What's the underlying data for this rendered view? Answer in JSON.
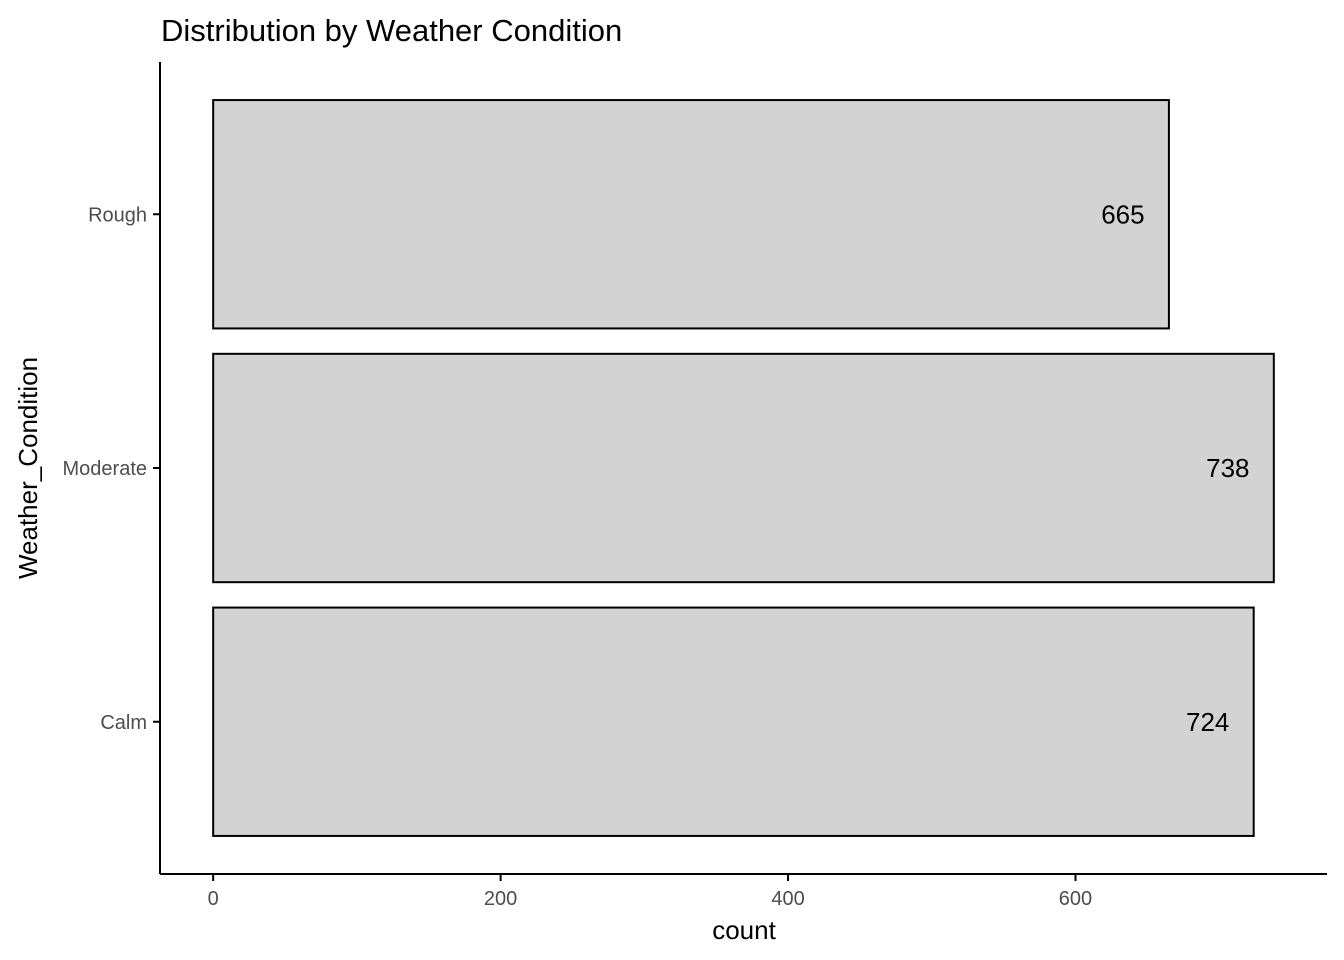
{
  "chart_data": {
    "type": "bar",
    "orientation": "horizontal",
    "title": "Distribution by Weather Condition",
    "xlabel": "count",
    "ylabel": "Weather_Condition",
    "categories": [
      "Calm",
      "Moderate",
      "Rough"
    ],
    "values": [
      724,
      738,
      665
    ],
    "data_labels": [
      "724",
      "738",
      "665"
    ],
    "xlim": [
      -37,
      775
    ],
    "xticks": [
      0,
      200,
      400,
      600
    ],
    "xtick_labels": [
      "0",
      "200",
      "400",
      "600"
    ],
    "grid": false,
    "legend": "none",
    "colors": {
      "bar_fill": "#d3d3d3",
      "bar_stroke": "#000000",
      "axis": "#000000",
      "tick_text": "#4d4d4d",
      "label_text": "#000000"
    }
  }
}
